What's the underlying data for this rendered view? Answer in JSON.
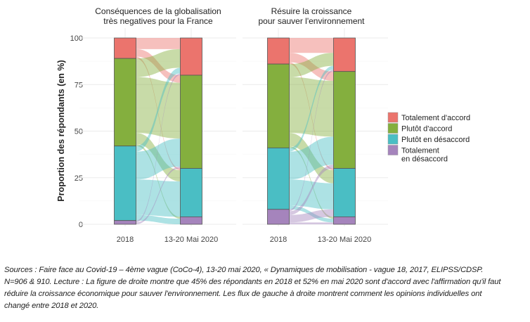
{
  "chart_data": {
    "type": "alluvial",
    "ylabel": "Proportion des répondants (en %)",
    "ylim": [
      0,
      100
    ],
    "yticks": [
      "0",
      "25",
      "50",
      "75",
      "100"
    ],
    "categories": [
      "2018",
      "13-20 Mai 2020"
    ],
    "legend": {
      "placement": "right",
      "entries": [
        {
          "label": "Totalement d'accord",
          "color": "#EB746D"
        },
        {
          "label": "Plutôt d'accord",
          "color": "#84AF3E"
        },
        {
          "label": "Plutôt en désaccord",
          "color": "#4ABEC4"
        },
        {
          "label": "Totalement en désaccord",
          "label_lines": [
            "Totalement",
            "en désaccord"
          ],
          "color": "#A584BC"
        }
      ]
    },
    "panels": [
      {
        "title_lines": [
          "Conséquences de la globalisation",
          "très negatives pour la France"
        ],
        "strata_2018": [
          11,
          47,
          40,
          2
        ],
        "strata_2020": [
          20,
          50,
          26,
          4
        ],
        "flows": [
          [
            6,
            4,
            1,
            0
          ],
          [
            10,
            30,
            6,
            1
          ],
          [
            3,
            15,
            19,
            3
          ],
          [
            1,
            1,
            0,
            0
          ]
        ]
      },
      {
        "title_lines": [
          "Résuire la croissance",
          "pour sauver l'environnement"
        ],
        "strata_2018": [
          14,
          45,
          33,
          8
        ],
        "strata_2020": [
          18,
          52,
          26,
          4
        ],
        "flows": [
          [
            8,
            5,
            1,
            0
          ],
          [
            7,
            30,
            7,
            1
          ],
          [
            2,
            15,
            14,
            2
          ],
          [
            1,
            2,
            4,
            1
          ]
        ]
      }
    ]
  },
  "caption": {
    "lines": [
      "Sources : Faire face au Covid-19 – 4ème vague (CoCo-4), 13-20 mai 2020, « Dynamiques de mobilisation - vague 18, 2017, ELIPSS/CDSP.",
      "N=906 & 910. Lecture : La figure de droite montre que 45% des répondants en 2018 et 52% en mai 2020 sont d'accord avec l'affirmation qu'il faut",
      "réduire la croissance économique pour sauver l'environnement. Les flux de gauche à droite montrent comment les opinions individuelles ont",
      "changé entre 2018 et 2020."
    ]
  }
}
